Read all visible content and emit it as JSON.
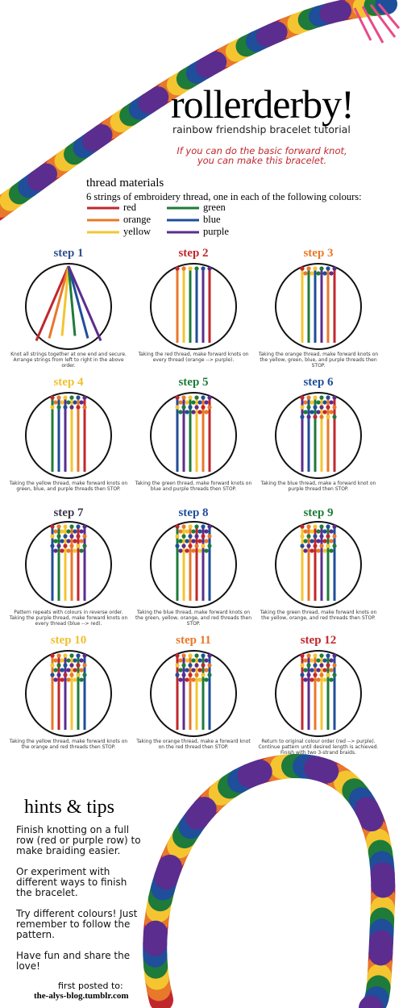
{
  "header": {
    "title": "rollerderby!",
    "subtitle": "rainbow friendship bracelet tutorial",
    "intro": "If you can do the basic forward knot, you can make this bracelet."
  },
  "materials": {
    "title": "thread materials",
    "description": "6 strings of embroidery thread, one in each of the following colours:",
    "threads": [
      {
        "name": "red",
        "color": "#c0272d"
      },
      {
        "name": "orange",
        "color": "#e8782a"
      },
      {
        "name": "yellow",
        "color": "#f4c530"
      },
      {
        "name": "green",
        "color": "#1e7b3a"
      },
      {
        "name": "blue",
        "color": "#1f4e9a"
      },
      {
        "name": "purple",
        "color": "#5b2d8e"
      }
    ]
  },
  "steps": [
    {
      "label": "step 1",
      "color": "#2f4f8f",
      "caption": "Knot all strings together at one end and secure. Arrange strings from left to right in the above order."
    },
    {
      "label": "step 2",
      "color": "#c0272d",
      "caption": "Taking the red thread, make forward knots on every thread (orange --> purple)."
    },
    {
      "label": "step 3",
      "color": "#e8782a",
      "caption": "Taking the orange thread, make forward knots on the yellow, green, blue, and purple threads then STOP."
    },
    {
      "label": "step 4",
      "color": "#f0c030",
      "caption": "Taking the yellow thread, make forward knots on green, blue, and purple threads then STOP."
    },
    {
      "label": "step 5",
      "color": "#1e7b3a",
      "caption": "Taking the green thread, make forward knots on blue and purple threads then STOP."
    },
    {
      "label": "step 6",
      "color": "#1f4e9a",
      "caption": "Taking the blue thread, make a forward knot on purple thread then STOP."
    },
    {
      "label": "step 7",
      "color": "#3a3a4a",
      "caption": "Pattern repeats with colours in reverse order. Taking the purple thread, make forward knots on every thread (blue --> red)."
    },
    {
      "label": "step 8",
      "color": "#1f4e9a",
      "caption": "Taking the blue thread, make forward knots on the green, yellow, orange, and red threads then STOP."
    },
    {
      "label": "step 9",
      "color": "#1e7b3a",
      "caption": "Taking the green thread, make forward knots on the yellow, orange, and red threads then STOP."
    },
    {
      "label": "step 10",
      "color": "#f0c030",
      "caption": "Taking the yellow thread, make forward knots on the orange and red threads then STOP."
    },
    {
      "label": "step 11",
      "color": "#e8782a",
      "caption": "Taking the orange thread, make a forward knot on the red thread then STOP."
    },
    {
      "label": "step 12",
      "color": "#c0272d",
      "caption": "Return to original colour order (red --> purple). Continue pattern until desired length is achieved. Finish with two 3-strand braids."
    }
  ],
  "hints": {
    "title": "hints & tips",
    "tips": [
      "Finish knotting on a full row (red or purple row) to make braiding easier.",
      "Or experiment with different ways to finish the bracelet.",
      "Try different colours! Just remember to follow the pattern.",
      "Have fun and share the love!"
    ]
  },
  "footer": {
    "note": "first posted to:",
    "site": "the-alys-blog.tumblr.com"
  }
}
